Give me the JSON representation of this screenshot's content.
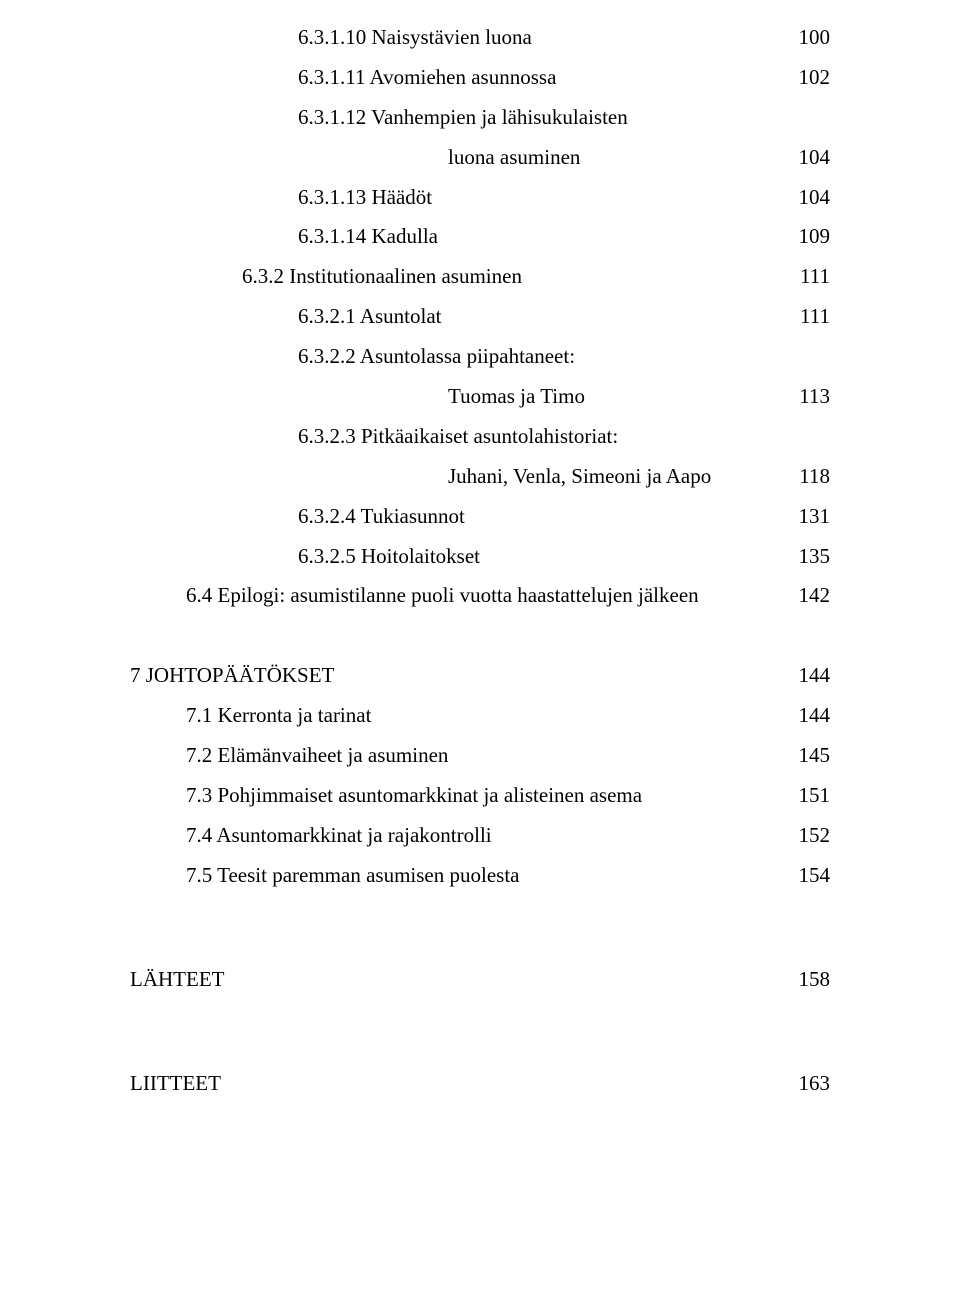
{
  "toc": {
    "items": [
      {
        "indent": "indent-3",
        "label": "6.3.1.10 Naisystävien luona",
        "page": "100"
      },
      {
        "indent": "indent-3",
        "label": "6.3.1.11 Avomiehen asunnossa",
        "page": "102"
      },
      {
        "indent": "indent-3",
        "label": "6.3.1.12 Vanhempien ja lähisukulaisten",
        "page": ""
      },
      {
        "indent": "indent-cont4",
        "label": "luona asuminen",
        "page": "104"
      },
      {
        "indent": "indent-3",
        "label": "6.3.1.13 Häädöt",
        "page": "104"
      },
      {
        "indent": "indent-3",
        "label": "6.3.1.14 Kadulla",
        "page": "109"
      },
      {
        "indent": "indent-2",
        "label": "6.3.2 Institutionaalinen asuminen",
        "page": "111"
      },
      {
        "indent": "indent-3",
        "label": "6.3.2.1 Asuntolat",
        "page": "111"
      },
      {
        "indent": "indent-3",
        "label": "6.3.2.2 Asuntolassa piipahtaneet:",
        "page": ""
      },
      {
        "indent": "indent-cont4",
        "label": "Tuomas ja Timo",
        "page": "113"
      },
      {
        "indent": "indent-3",
        "label": "6.3.2.3 Pitkäaikaiset asuntolahistoriat:",
        "page": ""
      },
      {
        "indent": "indent-cont4",
        "label": "Juhani, Venla, Simeoni ja Aapo",
        "page": "118"
      },
      {
        "indent": "indent-3",
        "label": "6.3.2.4 Tukiasunnot",
        "page": "131"
      },
      {
        "indent": "indent-3",
        "label": "6.3.2.5 Hoitolaitokset",
        "page": "135"
      },
      {
        "indent": "indent-1",
        "label": "6.4 Epilogi: asumistilanne puoli vuotta haastattelujen jälkeen",
        "page": "142"
      }
    ]
  },
  "section7": {
    "items": [
      {
        "indent": "indent-0",
        "label": "7 JOHTOPÄÄTÖKSET",
        "page": "144"
      },
      {
        "indent": "indent-1",
        "label": "7.1 Kerronta ja tarinat",
        "page": "144"
      },
      {
        "indent": "indent-1",
        "label": "7.2 Elämänvaiheet ja asuminen",
        "page": "145"
      },
      {
        "indent": "indent-1",
        "label": "7.3 Pohjimmaiset asuntomarkkinat ja alisteinen asema",
        "page": "151"
      },
      {
        "indent": "indent-1",
        "label": "7.4 Asuntomarkkinat ja rajakontrolli",
        "page": "152"
      },
      {
        "indent": "indent-1",
        "label": "7.5 Teesit paremman asumisen puolesta",
        "page": "154"
      }
    ]
  },
  "back": {
    "items": [
      {
        "indent": "indent-0",
        "label": "LÄHTEET",
        "page": "158"
      },
      {
        "indent": "indent-0",
        "label": "LIITTEET",
        "page": "163"
      }
    ]
  }
}
